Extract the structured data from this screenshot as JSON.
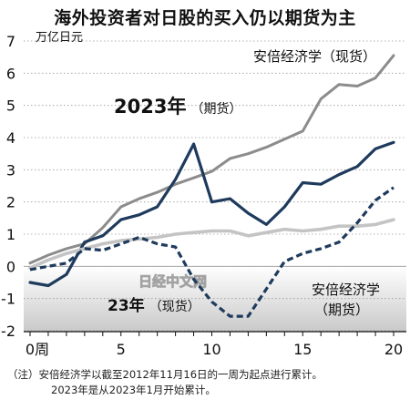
{
  "chart_data": {
    "type": "line",
    "title": "海外投资者对日股的买入仍以期货为主",
    "unit_label": "万亿日元",
    "x_tick_labels": [
      "0周",
      "5",
      "10",
      "15",
      "20"
    ],
    "x_ticks": [
      0,
      5,
      10,
      15,
      20
    ],
    "xlim": [
      0,
      20
    ],
    "y_tick_labels": [
      "7",
      "6",
      "5",
      "4",
      "3",
      "2",
      "1",
      "0",
      "-1",
      "-2"
    ],
    "y_ticks": [
      7,
      6,
      5,
      4,
      3,
      2,
      1,
      0,
      -1,
      -2
    ],
    "ylim": [
      -2,
      7
    ],
    "negative_region_shaded": true,
    "watermark": "日经中文网",
    "series": [
      {
        "name": "安倍经济学（现货）",
        "style": "solid",
        "color": "#8c8c8c",
        "x": [
          0,
          1,
          2,
          3,
          4,
          5,
          6,
          7,
          8,
          9,
          10,
          11,
          12,
          13,
          14,
          15,
          16,
          17,
          18,
          19,
          20
        ],
        "values": [
          0.1,
          0.35,
          0.55,
          0.7,
          1.2,
          1.85,
          2.1,
          2.3,
          2.55,
          2.75,
          2.95,
          3.35,
          3.5,
          3.7,
          3.95,
          4.2,
          5.2,
          5.65,
          5.6,
          5.85,
          6.55
        ]
      },
      {
        "name": "2023年（期货）",
        "style": "solid",
        "color": "#1e3a5c",
        "x": [
          0,
          1,
          2,
          3,
          4,
          5,
          6,
          7,
          8,
          9,
          10,
          11,
          12,
          13,
          14,
          15,
          16,
          17,
          18,
          19,
          20
        ],
        "values": [
          -0.5,
          -0.6,
          -0.25,
          0.75,
          0.95,
          1.45,
          1.6,
          1.85,
          2.7,
          3.8,
          2.0,
          2.1,
          1.65,
          1.3,
          1.85,
          2.6,
          2.55,
          2.85,
          3.1,
          3.65,
          3.85
        ]
      },
      {
        "name": "安倍经济学（期货）",
        "style": "solid",
        "color": "#c4c4c4",
        "x": [
          0,
          1,
          2,
          3,
          4,
          5,
          6,
          7,
          8,
          9,
          10,
          11,
          12,
          13,
          14,
          15,
          16,
          17,
          18,
          19,
          20
        ],
        "values": [
          -0.05,
          0.2,
          0.4,
          0.55,
          0.7,
          0.8,
          0.85,
          0.9,
          1.0,
          1.05,
          1.1,
          1.1,
          0.95,
          1.05,
          1.15,
          1.1,
          1.15,
          1.25,
          1.25,
          1.3,
          1.45
        ]
      },
      {
        "name": "23年（现货）",
        "style": "dashed",
        "color": "#1e3a5c",
        "x": [
          0,
          1,
          2,
          3,
          4,
          5,
          6,
          7,
          8,
          9,
          10,
          11,
          12,
          13,
          14,
          15,
          16,
          17,
          18,
          19,
          20
        ],
        "values": [
          -0.1,
          0.0,
          0.1,
          0.55,
          0.5,
          0.7,
          0.9,
          0.7,
          0.6,
          -0.4,
          -1.1,
          -1.55,
          -1.55,
          -0.7,
          0.15,
          0.4,
          0.55,
          0.75,
          1.35,
          2.05,
          2.45
        ]
      }
    ],
    "labels": {
      "abe_spot": "安倍经济学（现货）",
      "y2023_futures_year": "2023年",
      "y2023_futures_suffix": "（期货）",
      "y23_spot_year": "23年",
      "y23_spot_suffix": "（现货）",
      "abe_futures_line1": "安倍经济学",
      "abe_futures_line2": "（期货）"
    }
  },
  "notes": {
    "line1": "（注）安倍经济学以截至2012年11月16日的一周为起点进行累计。",
    "line2": "2023年是从2023年1月开始累计。"
  }
}
